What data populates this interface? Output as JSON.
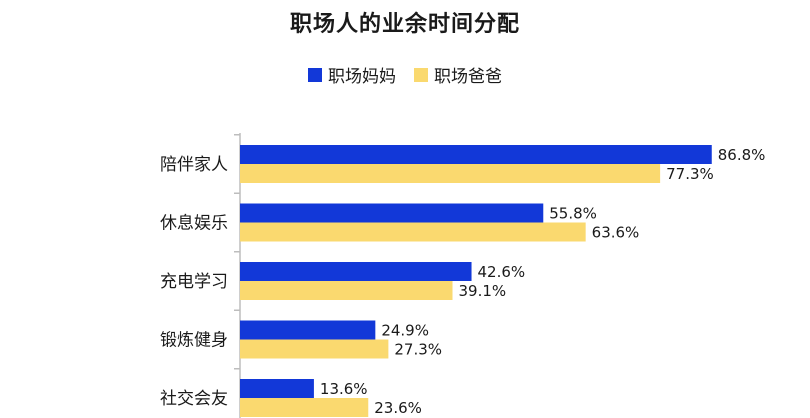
{
  "chart_data": {
    "type": "bar",
    "orientation": "horizontal",
    "title": "职场人的业余时间分配",
    "categories": [
      "陪伴家人",
      "休息娱乐",
      "充电学习",
      "锻炼健身",
      "社交会友"
    ],
    "series": [
      {
        "name": "职场妈妈",
        "values": [
          86.8,
          55.8,
          42.6,
          24.9,
          13.6
        ],
        "labels": [
          "86.8%",
          "55.8%",
          "42.6%",
          "24.9%",
          "13.6%"
        ],
        "color": "#1238d8"
      },
      {
        "name": "职场爸爸",
        "values": [
          77.3,
          63.6,
          39.1,
          27.3,
          23.6
        ],
        "labels": [
          "77.3%",
          "63.6%",
          "39.1%",
          "27.3%",
          "23.6%"
        ],
        "color": "#fad96f"
      }
    ],
    "xlim": [
      0,
      100
    ],
    "legend": "top-center",
    "grid": false
  }
}
